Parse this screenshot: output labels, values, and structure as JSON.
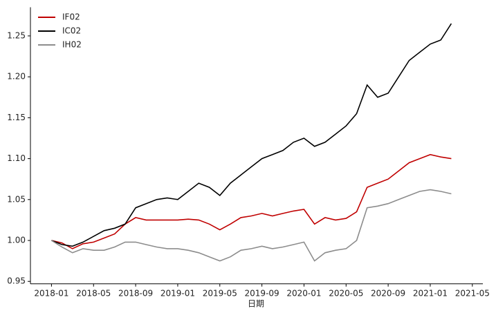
{
  "chart_data": {
    "type": "line",
    "xlabel": "日期",
    "x": [
      "2018-01",
      "2018-02",
      "2018-03",
      "2018-04",
      "2018-05",
      "2018-06",
      "2018-07",
      "2018-08",
      "2018-09",
      "2018-10",
      "2018-11",
      "2018-12",
      "2019-01",
      "2019-02",
      "2019-03",
      "2019-04",
      "2019-05",
      "2019-06",
      "2019-07",
      "2019-08",
      "2019-09",
      "2019-10",
      "2019-11",
      "2019-12",
      "2020-01",
      "2020-02",
      "2020-03",
      "2020-04",
      "2020-05",
      "2020-06",
      "2020-07",
      "2020-08",
      "2020-09",
      "2020-10",
      "2020-11",
      "2020-12",
      "2021-01",
      "2021-02",
      "2021-03"
    ],
    "series": [
      {
        "name": "IF02",
        "color": "#c00000",
        "values": [
          1.0,
          0.997,
          0.99,
          0.996,
          0.998,
          1.003,
          1.008,
          1.02,
          1.028,
          1.025,
          1.025,
          1.025,
          1.025,
          1.026,
          1.025,
          1.02,
          1.013,
          1.02,
          1.028,
          1.03,
          1.033,
          1.03,
          1.033,
          1.036,
          1.038,
          1.02,
          1.028,
          1.025,
          1.027,
          1.035,
          1.065,
          1.07,
          1.075,
          1.085,
          1.095,
          1.1,
          1.105,
          1.102,
          1.1
        ]
      },
      {
        "name": "IC02",
        "color": "#000000",
        "values": [
          1.0,
          0.995,
          0.993,
          0.998,
          1.005,
          1.012,
          1.015,
          1.02,
          1.04,
          1.045,
          1.05,
          1.052,
          1.05,
          1.06,
          1.07,
          1.065,
          1.055,
          1.07,
          1.08,
          1.09,
          1.1,
          1.105,
          1.11,
          1.12,
          1.125,
          1.115,
          1.12,
          1.13,
          1.14,
          1.155,
          1.19,
          1.175,
          1.18,
          1.2,
          1.22,
          1.23,
          1.24,
          1.245,
          1.265
        ]
      },
      {
        "name": "IH02",
        "color": "#8c8c8c",
        "values": [
          1.0,
          0.992,
          0.985,
          0.99,
          0.988,
          0.988,
          0.992,
          0.998,
          0.998,
          0.995,
          0.992,
          0.99,
          0.99,
          0.988,
          0.985,
          0.98,
          0.975,
          0.98,
          0.988,
          0.99,
          0.993,
          0.99,
          0.992,
          0.995,
          0.998,
          0.975,
          0.985,
          0.988,
          0.99,
          1.0,
          1.04,
          1.042,
          1.045,
          1.05,
          1.055,
          1.06,
          1.062,
          1.06,
          1.057
        ]
      }
    ],
    "xlim": [
      "2017-11",
      "2021-06"
    ],
    "xticks": [
      "2018-01",
      "2018-05",
      "2018-09",
      "2019-01",
      "2019-05",
      "2019-09",
      "2020-01",
      "2020-05",
      "2020-09",
      "2021-01",
      "2021-05"
    ],
    "ylim": [
      0.947,
      1.285
    ],
    "yticks": [
      0.95,
      {
        "value": 1.0,
        "label": "1.00"
      },
      1.05,
      {
        "value": 1.1,
        "label": "1.10"
      },
      1.15,
      {
        "value": 1.2,
        "label": "1.20"
      },
      1.25
    ],
    "legend": "upper-left"
  }
}
